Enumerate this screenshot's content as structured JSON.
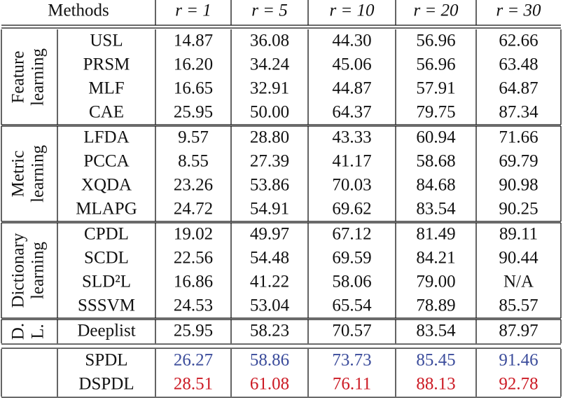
{
  "header": {
    "methods": "Methods",
    "columns": [
      "r = 1",
      "r = 5",
      "r = 10",
      "r = 20",
      "r = 30"
    ]
  },
  "groups": [
    {
      "label": [
        "Feature",
        "learning"
      ],
      "rows": [
        {
          "method": "USL",
          "values": [
            "14.87",
            "36.08",
            "44.30",
            "56.96",
            "62.66"
          ]
        },
        {
          "method": "PRSM",
          "values": [
            "16.20",
            "34.24",
            "45.06",
            "56.96",
            "63.48"
          ]
        },
        {
          "method": "MLF",
          "values": [
            "16.65",
            "32.91",
            "44.87",
            "57.91",
            "64.87"
          ]
        },
        {
          "method": "CAE",
          "values": [
            "25.95",
            "50.00",
            "64.37",
            "79.75",
            "87.34"
          ]
        }
      ]
    },
    {
      "label": [
        "Metric",
        "learning"
      ],
      "rows": [
        {
          "method": "LFDA",
          "values": [
            "9.57",
            "28.80",
            "43.33",
            "60.94",
            "71.66"
          ]
        },
        {
          "method": "PCCA",
          "values": [
            "8.55",
            "27.39",
            "41.17",
            "58.68",
            "69.79"
          ]
        },
        {
          "method": "XQDA",
          "values": [
            "23.26",
            "53.86",
            "70.03",
            "84.68",
            "90.98"
          ]
        },
        {
          "method": "MLAPG",
          "values": [
            "24.72",
            "54.91",
            "69.62",
            "83.54",
            "90.25"
          ]
        }
      ]
    },
    {
      "label": [
        "Dictionary",
        "learning"
      ],
      "rows": [
        {
          "method": "CPDL",
          "values": [
            "19.02",
            "49.97",
            "67.12",
            "81.49",
            "89.11"
          ]
        },
        {
          "method": "SCDL",
          "values": [
            "22.56",
            "54.48",
            "69.59",
            "84.21",
            "90.44"
          ]
        },
        {
          "method": "SLD²L",
          "values": [
            "16.86",
            "41.22",
            "58.06",
            "79.00",
            "N/A"
          ]
        },
        {
          "method": "SSSVM",
          "values": [
            "24.53",
            "53.04",
            "65.54",
            "78.89",
            "85.57"
          ]
        }
      ]
    },
    {
      "label": [
        "D.",
        "L."
      ],
      "rows": [
        {
          "method": "Deeplist",
          "values": [
            "25.95",
            "58.23",
            "70.57",
            "83.54",
            "87.97"
          ]
        }
      ]
    },
    {
      "label": [],
      "rows": [
        {
          "method": "SPDL",
          "color": "#3b4c9b",
          "values": [
            "26.27",
            "58.86",
            "73.73",
            "85.45",
            "91.46"
          ]
        },
        {
          "method": "DSPDL",
          "color": "#cc1a24",
          "values": [
            "28.51",
            "61.08",
            "76.11",
            "88.13",
            "92.78"
          ]
        }
      ]
    }
  ]
}
